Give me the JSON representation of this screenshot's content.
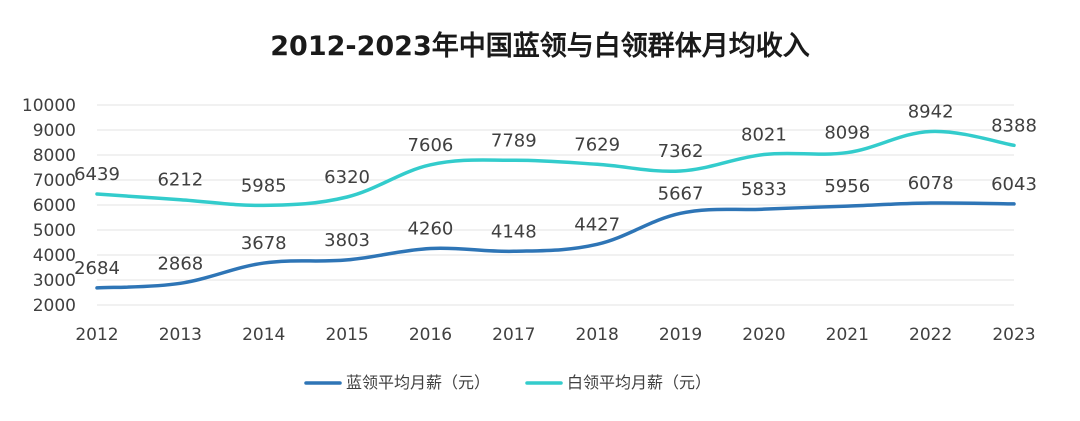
{
  "chart_data": {
    "type": "line",
    "title": "2012-2023年中国蓝领与白领群体月均收入",
    "x": [
      "2012",
      "2013",
      "2014",
      "2015",
      "2016",
      "2017",
      "2018",
      "2019",
      "2020",
      "2021",
      "2022",
      "2023"
    ],
    "ylim": [
      2000,
      10000
    ],
    "yticks": [
      2000,
      3000,
      4000,
      5000,
      6000,
      7000,
      8000,
      9000,
      10000
    ],
    "grid": true,
    "legend_position": "bottom",
    "series": [
      {
        "name": "蓝领平均月薪（元）",
        "color": "#2E75B6",
        "values": [
          2684,
          2868,
          3678,
          3803,
          4260,
          4148,
          4427,
          5667,
          5833,
          5956,
          6078,
          6043
        ]
      },
      {
        "name": "白领平均月薪（元）",
        "color": "#33CCCC",
        "values": [
          6439,
          6212,
          5985,
          6320,
          7606,
          7789,
          7629,
          7362,
          8021,
          8098,
          8942,
          8388
        ]
      }
    ]
  }
}
